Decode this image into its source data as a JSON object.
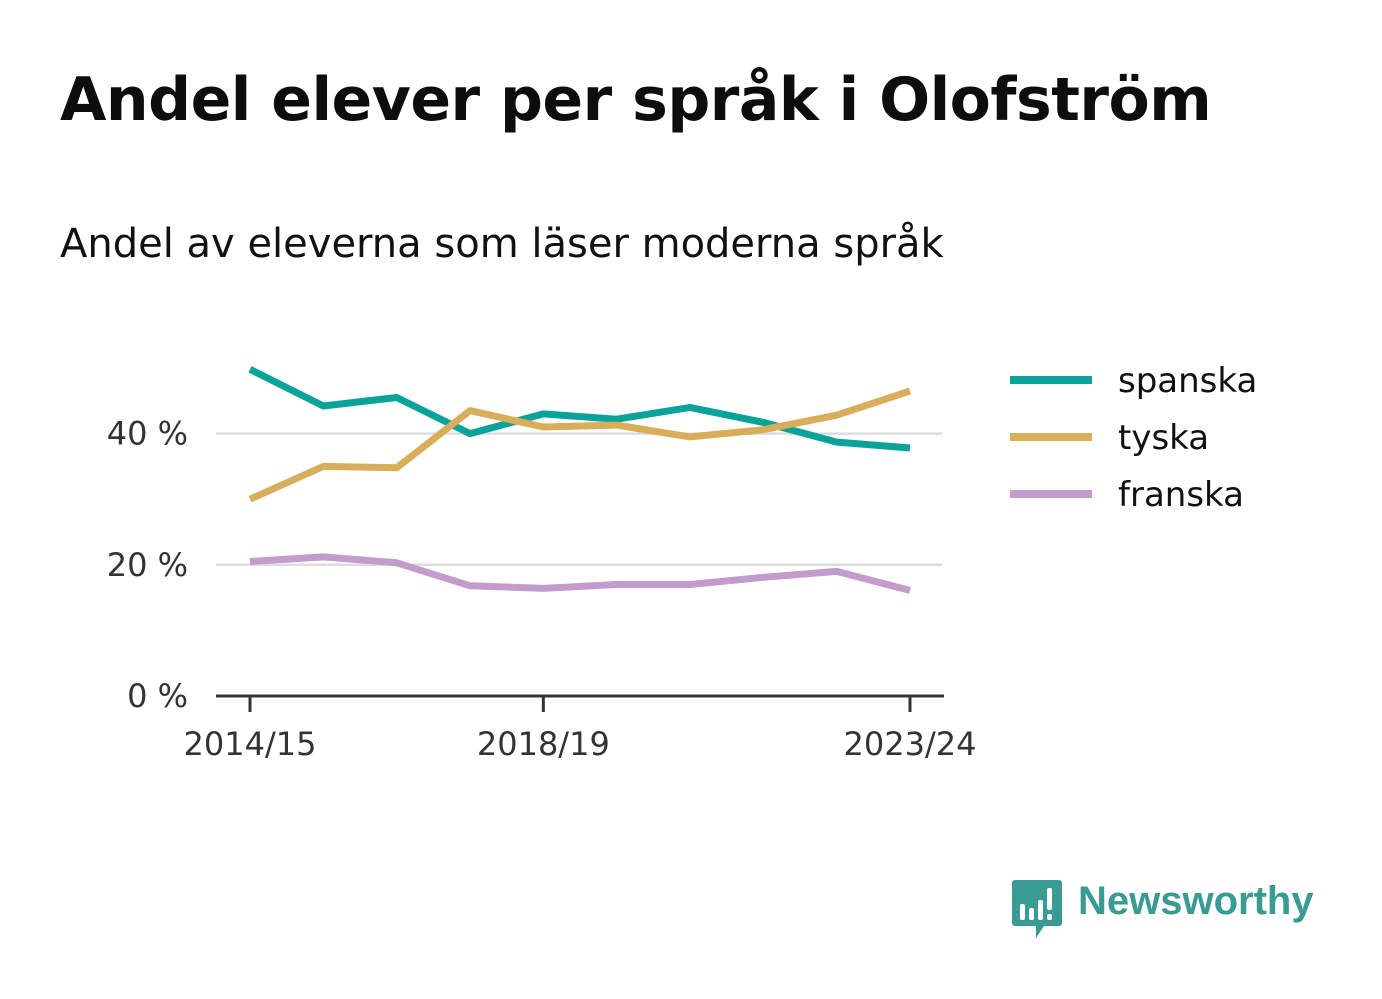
{
  "chart_data": {
    "type": "line",
    "title": "Andel elever per språk i Olofström",
    "subtitle": "Andel av eleverna som läser moderna språk",
    "x": [
      "2014/15",
      "2015/16",
      "2016/17",
      "2017/18",
      "2018/19",
      "2019/20",
      "2020/21",
      "2021/22",
      "2022/23",
      "2023/24"
    ],
    "x_tick_labels": [
      "2014/15",
      "2018/19",
      "2023/24"
    ],
    "x_tick_values": [
      "2014/15",
      "2018/19",
      "2023/24"
    ],
    "y_ticks": [
      0,
      20,
      40
    ],
    "y_tick_labels": [
      "0 %",
      "20 %",
      "40 %"
    ],
    "ylim": [
      0,
      50
    ],
    "grid": "horizontal",
    "legend_position": "right",
    "series": [
      {
        "name": "spanska",
        "color": "#0aa39b",
        "values": [
          49.8,
          44.2,
          45.5,
          40.0,
          43.0,
          42.2,
          44.0,
          41.7,
          38.7,
          37.8
        ]
      },
      {
        "name": "tyska",
        "color": "#d9ae5b",
        "values": [
          30.0,
          35.0,
          34.8,
          43.5,
          41.0,
          41.3,
          39.5,
          40.6,
          42.8,
          46.5
        ]
      },
      {
        "name": "franska",
        "color": "#c39ccd",
        "values": [
          20.5,
          21.2,
          20.3,
          16.8,
          16.4,
          17.0,
          17.0,
          18.1,
          19.0,
          16.1
        ]
      }
    ]
  },
  "brand": {
    "name": "Newsworthy",
    "icon": "bar-chart-speech-bubble-icon",
    "color": "#3a9a94"
  }
}
